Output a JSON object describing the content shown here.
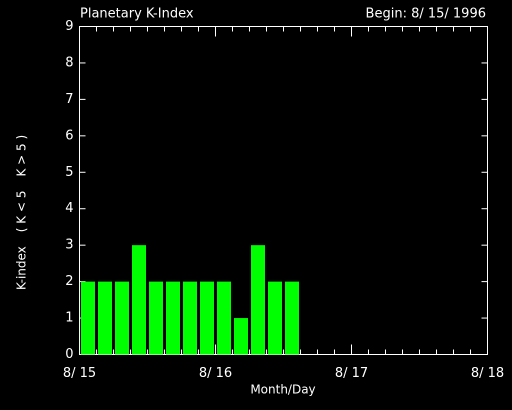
{
  "chart_data": {
    "type": "bar",
    "title": "Planetary K-Index",
    "subtitle": "Begin: 8/ 15/ 1996",
    "y_label_parts": [
      {
        "text": "K-index",
        "color": "#ffffff"
      },
      {
        "text": "( K < 5",
        "color": "#00ff00"
      },
      {
        "text": "K > 5 )",
        "color": "#ff0000"
      }
    ],
    "x_label": "Month/Day",
    "x": [
      0,
      3,
      6,
      9,
      12,
      15,
      18,
      21,
      24,
      27,
      30,
      33,
      36
    ],
    "bar_width": 3,
    "values": [
      2,
      2,
      2,
      3,
      2,
      2,
      2,
      2,
      2,
      1,
      3,
      2,
      2
    ],
    "color": "#00ff00",
    "xlim": [
      0,
      72
    ],
    "xticks": [
      {
        "value": 0,
        "label": "8/ 15"
      },
      {
        "value": 24,
        "label": "8/ 16"
      },
      {
        "value": 48,
        "label": "8/ 17"
      },
      {
        "value": 72,
        "label": "8/ 18"
      }
    ],
    "xminorticks": [
      3,
      6,
      9,
      12,
      15,
      18,
      21,
      27,
      30,
      33,
      36,
      39,
      42,
      45,
      51,
      54,
      57,
      60,
      63,
      66,
      69
    ],
    "ylim": [
      0,
      9
    ],
    "yticks": [
      0,
      1,
      2,
      3,
      4,
      5,
      6,
      7,
      8,
      9
    ]
  }
}
